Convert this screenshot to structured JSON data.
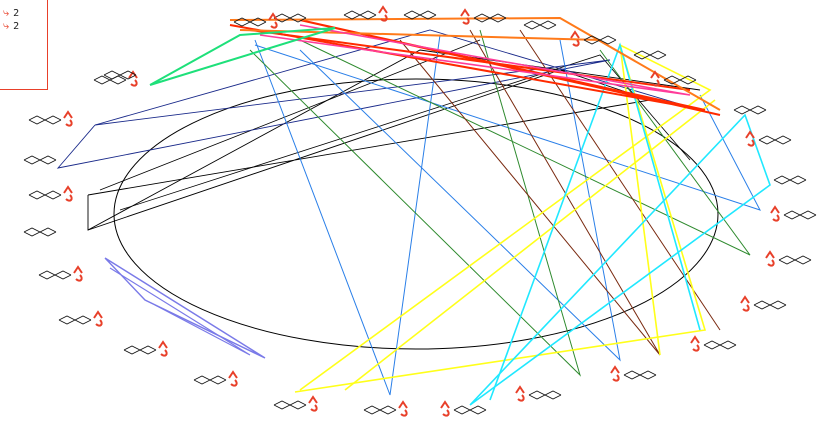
{
  "legend": {
    "entries": [
      {
        "value": "2"
      },
      {
        "value": "2"
      }
    ]
  },
  "colors": {
    "ellipse": "#000000",
    "structure_label": "#e8402a",
    "background": "#ffffff",
    "edge_colors": [
      "#ff2a00",
      "#ff7a1a",
      "#ff3c9a",
      "#1ee07a",
      "#ffff1a",
      "#20e8ff",
      "#2a7fe8",
      "#1a2a8a",
      "#2e8a2e",
      "#7a2a10",
      "#7a7ae8",
      "#000000"
    ]
  },
  "node_icons": "molecule-structure-icon",
  "legend_icon": "arrow-glyph-icon"
}
